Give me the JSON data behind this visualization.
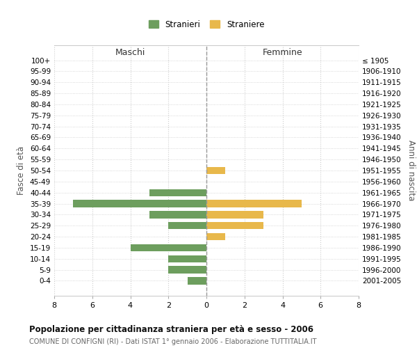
{
  "age_groups": [
    "100+",
    "95-99",
    "90-94",
    "85-89",
    "80-84",
    "75-79",
    "70-74",
    "65-69",
    "60-64",
    "55-59",
    "50-54",
    "45-49",
    "40-44",
    "35-39",
    "30-34",
    "25-29",
    "20-24",
    "15-19",
    "10-14",
    "5-9",
    "0-4"
  ],
  "birth_years": [
    "≤ 1905",
    "1906-1910",
    "1911-1915",
    "1916-1920",
    "1921-1925",
    "1926-1930",
    "1931-1935",
    "1936-1940",
    "1941-1945",
    "1946-1950",
    "1951-1955",
    "1956-1960",
    "1961-1965",
    "1966-1970",
    "1971-1975",
    "1976-1980",
    "1981-1985",
    "1986-1990",
    "1991-1995",
    "1996-2000",
    "2001-2005"
  ],
  "maschi": [
    0,
    0,
    0,
    0,
    0,
    0,
    0,
    0,
    0,
    0,
    0,
    0,
    3,
    7,
    3,
    2,
    0,
    4,
    2,
    2,
    1
  ],
  "femmine": [
    0,
    0,
    0,
    0,
    0,
    0,
    0,
    0,
    0,
    0,
    1,
    0,
    0,
    5,
    3,
    3,
    1,
    0,
    0,
    0,
    0
  ],
  "male_color": "#6d9e5e",
  "female_color": "#e8b84b",
  "title": "Popolazione per cittadinanza straniera per età e sesso - 2006",
  "subtitle": "COMUNE DI CONFIGNI (RI) - Dati ISTAT 1° gennaio 2006 - Elaborazione TUTTITALIA.IT",
  "ylabel_left": "Fasce di età",
  "ylabel_right": "Anni di nascita",
  "xlabel_left": "Maschi",
  "xlabel_right": "Femmine",
  "legend_male": "Stranieri",
  "legend_female": "Straniere",
  "xlim": 8,
  "bg_color": "#ffffff",
  "grid_color": "#cccccc",
  "axis_label_color": "#555555"
}
